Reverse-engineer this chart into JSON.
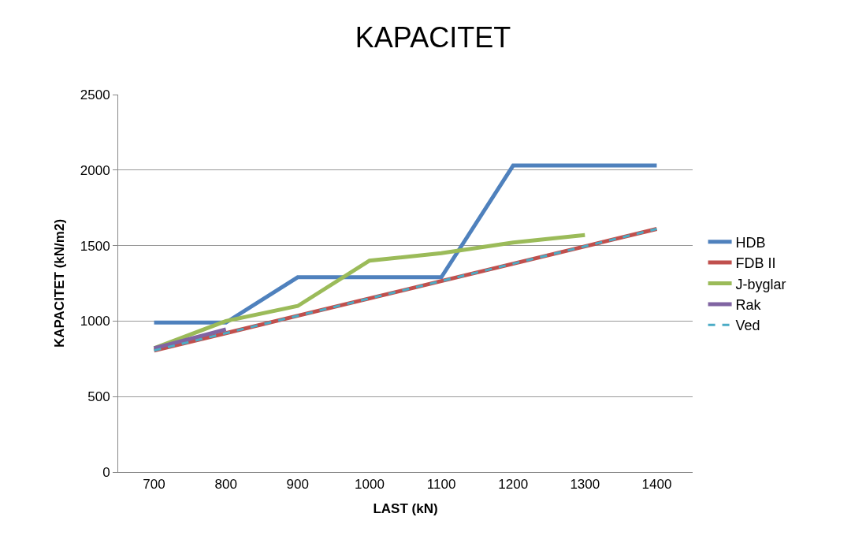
{
  "chart_data": {
    "type": "line",
    "title": "KAPACITET",
    "xlabel": "LAST (kN)",
    "ylabel": "KAPACITET (kN/m2)",
    "categories": [
      "700",
      "800",
      "900",
      "1000",
      "1100",
      "1200",
      "1300",
      "1400"
    ],
    "series": [
      {
        "name": "HDB",
        "color": "#4f81bd",
        "values": [
          990,
          990,
          1290,
          1290,
          1290,
          2030,
          2030,
          2030
        ]
      },
      {
        "name": "FDB II",
        "color": "#c0504d",
        "values": [
          805,
          920,
          1035,
          1150,
          1265,
          1380,
          1495,
          1610
        ]
      },
      {
        "name": "J-byglar",
        "color": "#9bbb59",
        "values": [
          820,
          1000,
          1100,
          1400,
          1450,
          1520,
          1570,
          null
        ]
      },
      {
        "name": "Rak",
        "color": "#8064a2",
        "values": [
          820,
          945,
          null,
          null,
          null,
          null,
          null,
          null
        ]
      },
      {
        "name": "Ved",
        "color": "#4bacc6",
        "values": [
          805,
          920,
          1035,
          1150,
          1265,
          1380,
          1495,
          1610
        ],
        "line_style": "dashed"
      }
    ],
    "ylim": [
      0,
      2500
    ],
    "yticks": [
      0,
      500,
      1000,
      1500,
      2000,
      2500
    ],
    "grid": "y",
    "legend": "right",
    "marker": "none",
    "line_style": "solid"
  }
}
